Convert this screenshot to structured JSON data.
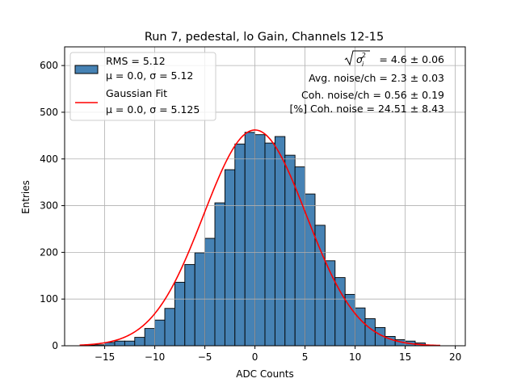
{
  "chart_data": {
    "type": "bar",
    "title": "Run 7, pedestal, lo Gain, Channels 12-15",
    "xlabel": "ADC Counts",
    "ylabel": "Entries",
    "xlim": [
      -19.0,
      21.0
    ],
    "ylim": [
      0,
      640
    ],
    "xticks": [
      -15,
      -10,
      -5,
      0,
      5,
      10,
      15,
      20
    ],
    "yticks": [
      0,
      100,
      200,
      300,
      400,
      500,
      600
    ],
    "grid": true,
    "legend_position": "top-left",
    "bin_width": 1,
    "bin_starts": [
      -17,
      -16,
      -15,
      -14,
      -13,
      -12,
      -11,
      -10,
      -9,
      -8,
      -7,
      -6,
      -5,
      -4,
      -3,
      -2,
      -1,
      0,
      1,
      2,
      3,
      4,
      5,
      6,
      7,
      8,
      9,
      10,
      11,
      12,
      13,
      14,
      15,
      16,
      17,
      18
    ],
    "values": [
      1,
      2,
      7,
      10,
      10,
      18,
      37,
      55,
      80,
      136,
      174,
      199,
      230,
      306,
      377,
      432,
      457,
      452,
      434,
      448,
      408,
      383,
      325,
      258,
      182,
      146,
      110,
      81,
      58,
      39,
      20,
      13,
      10,
      6,
      1,
      0
    ],
    "series": [
      {
        "name": "RMS = 5.12",
        "subtitle": "μ = 0.0, σ = 5.12",
        "kind": "histogram",
        "color": "#4682b4"
      },
      {
        "name": "Gaussian Fit",
        "subtitle": "μ = 0.0, σ = 5.125",
        "kind": "line",
        "color": "#ff0000",
        "mu": 0.0,
        "sigma": 5.125,
        "amplitude": 462,
        "x_range": [
          -17.5,
          18.5
        ]
      }
    ],
    "annotations": {
      "sigma_line": "= 4.6 ± 0.06",
      "avg_noise": "Avg. noise/ch = 2.3 ± 0.03",
      "coh_noise": "Coh. noise/ch = 0.56 ± 0.19",
      "pct_coh": "[%] Coh. noise = 24.51 ± 8.43"
    }
  }
}
